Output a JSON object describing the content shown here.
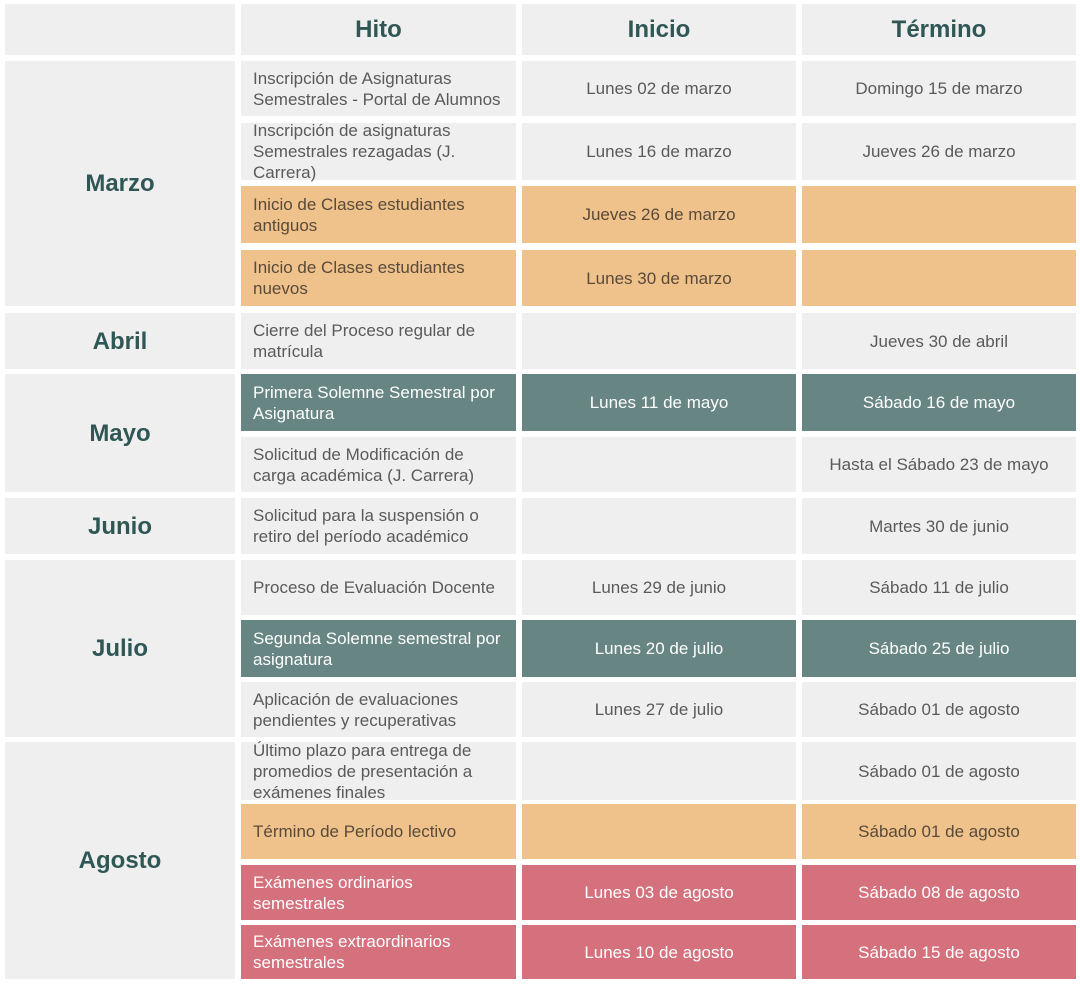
{
  "headers": {
    "corner": "",
    "hito": "Hito",
    "inicio": "Inicio",
    "termino": "Término"
  },
  "colors": {
    "cell": "#efefef",
    "orange": "#efc28b",
    "teal": "#668583",
    "red": "#d5707d",
    "heading": "#2f5755",
    "text": "#5a5a5a"
  },
  "months": [
    {
      "name": "Marzo",
      "rows": [
        {
          "hito": "Inscripción de Asignaturas Semestrales - Portal de Alumnos",
          "inicio": "Lunes 02 de marzo",
          "termino": "Domingo 15 de marzo",
          "highlight": "none"
        },
        {
          "hito": "Inscripción de asignaturas Semestrales rezagadas (J. Carrera)",
          "inicio": "Lunes 16 de marzo",
          "termino": "Jueves 26 de marzo",
          "highlight": "none"
        },
        {
          "hito": "Inicio de Clases estudiantes antiguos",
          "inicio": "Jueves 26 de marzo",
          "termino": "",
          "highlight": "orange"
        },
        {
          "hito": "Inicio de Clases estudiantes nuevos",
          "inicio": "Lunes 30 de marzo",
          "termino": "",
          "highlight": "orange"
        }
      ]
    },
    {
      "name": "Abril",
      "rows": [
        {
          "hito": "Cierre del Proceso regular de matrícula",
          "inicio": "",
          "termino": "Jueves 30 de abril",
          "highlight": "none"
        }
      ]
    },
    {
      "name": "Mayo",
      "rows": [
        {
          "hito": "Primera Solemne Semestral por Asignatura",
          "inicio": "Lunes 11 de mayo",
          "termino": "Sábado 16 de mayo",
          "highlight": "teal"
        },
        {
          "hito": "Solicitud de Modificación de carga académica (J. Carrera)",
          "inicio": "",
          "termino": "Hasta el Sábado 23 de mayo",
          "highlight": "none"
        }
      ]
    },
    {
      "name": "Junio",
      "rows": [
        {
          "hito": "Solicitud para la suspensión o retiro del período académico",
          "inicio": "",
          "termino": "Martes 30 de junio",
          "highlight": "none"
        }
      ]
    },
    {
      "name": "Julio",
      "rows": [
        {
          "hito": "Proceso de Evaluación Docente",
          "inicio": "Lunes 29 de junio",
          "termino": "Sábado 11 de julio",
          "highlight": "none"
        },
        {
          "hito": "Segunda Solemne  semestral por asignatura",
          "inicio": "Lunes 20 de julio",
          "termino": "Sábado 25 de julio",
          "highlight": "teal"
        },
        {
          "hito": "Aplicación de evaluaciones pendientes y recuperativas",
          "inicio": "Lunes 27 de julio",
          "termino": "Sábado 01 de agosto",
          "highlight": "none"
        }
      ]
    },
    {
      "name": "Agosto",
      "rows": [
        {
          "hito": "Último plazo para entrega de promedios de presentación a exámenes finales",
          "inicio": "",
          "termino": "Sábado 01 de agosto",
          "highlight": "none"
        },
        {
          "hito": "Término de Período lectivo",
          "inicio": "",
          "termino": "Sábado 01 de agosto",
          "highlight": "orange"
        },
        {
          "hito": "Exámenes ordinarios semestrales",
          "inicio": "Lunes 03 de agosto",
          "termino": "Sábado 08 de agosto",
          "highlight": "red"
        },
        {
          "hito": "Exámenes extraordinarios semestrales",
          "inicio": "Lunes 10 de agosto",
          "termino": "Sábado 15 de agosto",
          "highlight": "red"
        }
      ]
    }
  ]
}
